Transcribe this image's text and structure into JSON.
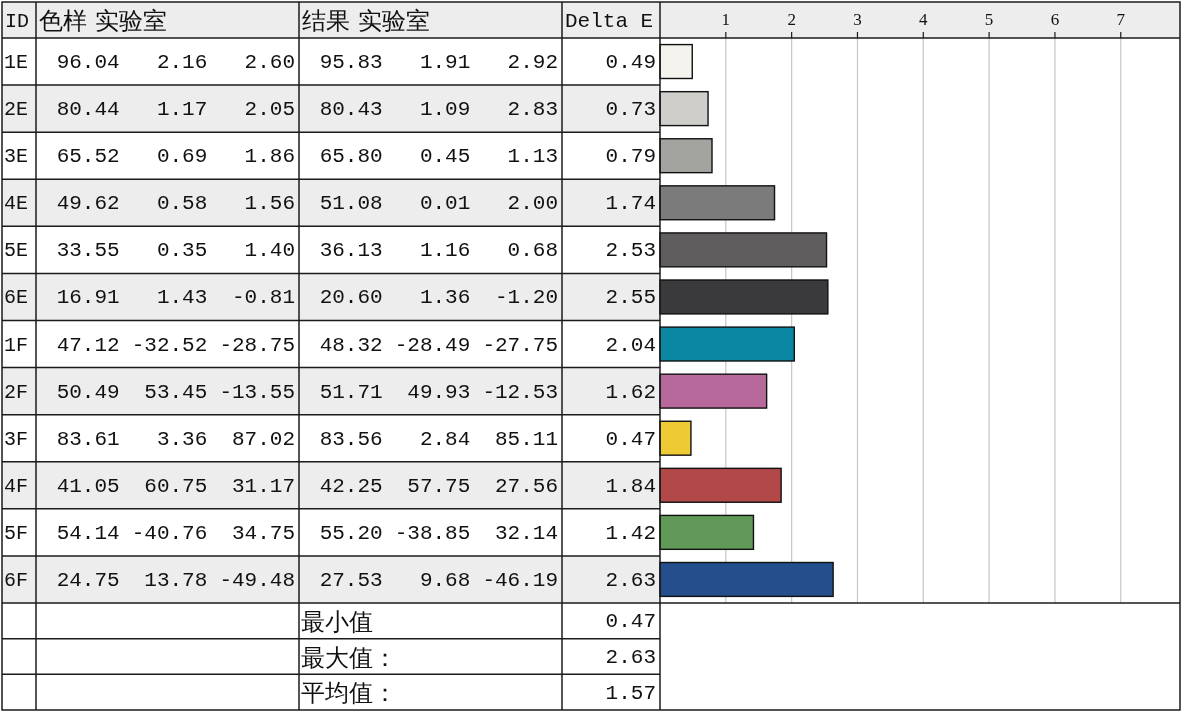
{
  "chart_data": [
    {
      "type": "heatmap",
      "ylabel": "ID",
      "categories": [
        "色样 实验室",
        null,
        null,
        "结果 实验室",
        null,
        null
      ],
      "y_categories": [
        "1E",
        "2E",
        "3E",
        "4E",
        "5E",
        "6E",
        "1F",
        "2F",
        "3F",
        "4F",
        "5F",
        "6F"
      ],
      "cells": [
        [
          96.04,
          2.16,
          2.6,
          95.83,
          1.91,
          2.92
        ],
        [
          80.44,
          1.17,
          2.05,
          80.43,
          1.09,
          2.83
        ],
        [
          65.52,
          0.69,
          1.86,
          65.8,
          0.45,
          1.13
        ],
        [
          49.62,
          0.58,
          1.56,
          51.08,
          0.01,
          2.0
        ],
        [
          33.55,
          0.35,
          1.4,
          36.13,
          1.16,
          0.68
        ],
        [
          16.91,
          1.43,
          -0.81,
          20.6,
          1.36,
          -1.2
        ],
        [
          47.12,
          -32.52,
          -28.75,
          48.32,
          -28.49,
          -27.75
        ],
        [
          50.49,
          53.45,
          -13.55,
          51.71,
          49.93,
          -12.53
        ],
        [
          83.61,
          3.36,
          87.02,
          83.56,
          2.84,
          85.11
        ],
        [
          41.05,
          60.75,
          31.17,
          42.25,
          57.75,
          27.56
        ],
        [
          54.14,
          -40.76,
          34.75,
          55.2,
          -38.85,
          32.14
        ],
        [
          24.75,
          13.78,
          -49.48,
          27.53,
          9.68,
          -46.19
        ]
      ],
      "cell_labels": [
        [
          "96.04",
          "2.16",
          "2.60",
          "95.83",
          "1.91",
          "2.92"
        ],
        [
          "80.44",
          "1.17",
          "2.05",
          "80.43",
          "1.09",
          "2.83"
        ],
        [
          "65.52",
          "0.69",
          "1.86",
          "65.80",
          "0.45",
          "1.13"
        ],
        [
          "49.62",
          "0.58",
          "1.56",
          "51.08",
          "0.01",
          "2.00"
        ],
        [
          "33.55",
          "0.35",
          "1.40",
          "36.13",
          "1.16",
          "0.68"
        ],
        [
          "16.91",
          "1.43",
          "-0.81",
          "20.60",
          "1.36",
          "-1.20"
        ],
        [
          "47.12",
          "-32.52",
          "-28.75",
          "48.32",
          "-28.49",
          "-27.75"
        ],
        [
          "50.49",
          "53.45",
          "-13.55",
          "51.71",
          "49.93",
          "-12.53"
        ],
        [
          "83.61",
          "3.36",
          "87.02",
          "83.56",
          "2.84",
          "85.11"
        ],
        [
          "41.05",
          "60.75",
          "31.17",
          "42.25",
          "57.75",
          "27.56"
        ],
        [
          "54.14",
          "-40.76",
          "34.75",
          "55.20",
          "-38.85",
          "32.14"
        ],
        [
          "24.75",
          "13.78",
          "-49.48",
          "27.53",
          "9.68",
          "-46.19"
        ]
      ]
    },
    {
      "type": "bar",
      "orientation": "horizontal",
      "categories": [
        null,
        null,
        null,
        null,
        null,
        null,
        null,
        null,
        null,
        null,
        null,
        null
      ],
      "values": [
        0.49,
        0.73,
        0.79,
        1.74,
        2.53,
        2.55,
        2.04,
        1.62,
        0.47,
        1.84,
        1.42,
        2.63
      ],
      "colors": [
        "#f5f3ee",
        "#cfcecb",
        "#a3a3a0",
        "#7b7b7b",
        "#5f5d5e",
        "#3a3a3c",
        "#0b87a3",
        "#b8699b",
        "#eecb35",
        "#b24848",
        "#619958",
        "#244e8c"
      ],
      "xlim": [
        0,
        7.9
      ],
      "xticks": [
        1,
        2,
        3,
        4,
        5,
        6,
        7
      ],
      "grid": "x",
      "data_labels": true,
      "xlabel": "Delta E",
      "annotations": [
        "最小值",
        "0.47",
        "最大值：",
        "2.63",
        "平均值：",
        "1.57"
      ]
    }
  ]
}
